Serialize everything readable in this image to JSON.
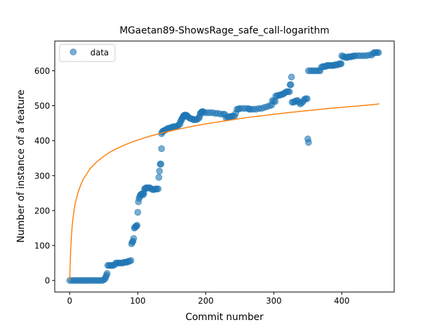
{
  "chart_data": {
    "type": "scatter",
    "title": "MGaetan89-ShowsRage_safe_call-logarithm",
    "xlabel": "Commit number",
    "ylabel": "Number of instance of a feature",
    "xlim": [
      -22,
      477
    ],
    "ylim": [
      -33,
      685
    ],
    "xticks": [
      0,
      100,
      200,
      300,
      400
    ],
    "yticks": [
      0,
      100,
      200,
      300,
      400,
      500,
      600
    ],
    "xtick_labels": [
      "0",
      "100",
      "200",
      "300",
      "400"
    ],
    "ytick_labels": [
      "0",
      "100",
      "200",
      "300",
      "400",
      "500",
      "600"
    ],
    "grid": false,
    "legend": {
      "position": "top-left",
      "entries": [
        "data"
      ]
    },
    "series": [
      {
        "name": "data",
        "kind": "scatter",
        "color": "#1f77b4",
        "points": [
          [
            0,
            0
          ],
          [
            3,
            0
          ],
          [
            6,
            0
          ],
          [
            9,
            0
          ],
          [
            12,
            0
          ],
          [
            15,
            0
          ],
          [
            18,
            0
          ],
          [
            21,
            0
          ],
          [
            24,
            0
          ],
          [
            27,
            0
          ],
          [
            30,
            0
          ],
          [
            33,
            0
          ],
          [
            36,
            0
          ],
          [
            39,
            0
          ],
          [
            42,
            0
          ],
          [
            45,
            0
          ],
          [
            48,
            0
          ],
          [
            50,
            2
          ],
          [
            52,
            5
          ],
          [
            53,
            10
          ],
          [
            54,
            15
          ],
          [
            55,
            20
          ],
          [
            56,
            43
          ],
          [
            58,
            43
          ],
          [
            60,
            43
          ],
          [
            62,
            43
          ],
          [
            64,
            43
          ],
          [
            66,
            45
          ],
          [
            68,
            50
          ],
          [
            70,
            50
          ],
          [
            72,
            50
          ],
          [
            74,
            50
          ],
          [
            76,
            50
          ],
          [
            78,
            50
          ],
          [
            80,
            52
          ],
          [
            82,
            52
          ],
          [
            84,
            52
          ],
          [
            86,
            55
          ],
          [
            88,
            55
          ],
          [
            90,
            57
          ],
          [
            91,
            105
          ],
          [
            92,
            110
          ],
          [
            93,
            112
          ],
          [
            94,
            120
          ],
          [
            95,
            150
          ],
          [
            96,
            152
          ],
          [
            97,
            155
          ],
          [
            98,
            155
          ],
          [
            99,
            158
          ],
          [
            100,
            195
          ],
          [
            101,
            225
          ],
          [
            102,
            235
          ],
          [
            103,
            240
          ],
          [
            104,
            245
          ],
          [
            105,
            245
          ],
          [
            106,
            248
          ],
          [
            107,
            248
          ],
          [
            108,
            245
          ],
          [
            109,
            250
          ],
          [
            110,
            262
          ],
          [
            111,
            262
          ],
          [
            112,
            265
          ],
          [
            114,
            265
          ],
          [
            116,
            265
          ],
          [
            118,
            265
          ],
          [
            120,
            262
          ],
          [
            122,
            260
          ],
          [
            124,
            260
          ],
          [
            126,
            262
          ],
          [
            128,
            262
          ],
          [
            130,
            262
          ],
          [
            131,
            295
          ],
          [
            132,
            313
          ],
          [
            133,
            333
          ],
          [
            134,
            333
          ],
          [
            135,
            377
          ],
          [
            135,
            420
          ],
          [
            136,
            425
          ],
          [
            137,
            427
          ],
          [
            138,
            428
          ],
          [
            140,
            430
          ],
          [
            142,
            432
          ],
          [
            144,
            435
          ],
          [
            146,
            435
          ],
          [
            148,
            437
          ],
          [
            150,
            438
          ],
          [
            152,
            440
          ],
          [
            154,
            440
          ],
          [
            156,
            440
          ],
          [
            158,
            442
          ],
          [
            160,
            445
          ],
          [
            162,
            447
          ],
          [
            163,
            455
          ],
          [
            164,
            458
          ],
          [
            165,
            463
          ],
          [
            166,
            465
          ],
          [
            167,
            470
          ],
          [
            168,
            472
          ],
          [
            169,
            473
          ],
          [
            170,
            473
          ],
          [
            171,
            473
          ],
          [
            172,
            472
          ],
          [
            173,
            470
          ],
          [
            174,
            468
          ],
          [
            176,
            465
          ],
          [
            178,
            463
          ],
          [
            180,
            462
          ],
          [
            182,
            460
          ],
          [
            184,
            460
          ],
          [
            186,
            460
          ],
          [
            188,
            462
          ],
          [
            190,
            465
          ],
          [
            191,
            470
          ],
          [
            192,
            478
          ],
          [
            193,
            480
          ],
          [
            194,
            482
          ],
          [
            195,
            483
          ],
          [
            196,
            483
          ],
          [
            198,
            480
          ],
          [
            202,
            480
          ],
          [
            206,
            480
          ],
          [
            210,
            480
          ],
          [
            214,
            478
          ],
          [
            218,
            478
          ],
          [
            222,
            476
          ],
          [
            226,
            476
          ],
          [
            228,
            475
          ],
          [
            230,
            465
          ],
          [
            232,
            468
          ],
          [
            234,
            468
          ],
          [
            236,
            468
          ],
          [
            238,
            470
          ],
          [
            240,
            470
          ],
          [
            242,
            470
          ],
          [
            244,
            478
          ],
          [
            246,
            490
          ],
          [
            248,
            490
          ],
          [
            250,
            492
          ],
          [
            254,
            492
          ],
          [
            258,
            492
          ],
          [
            262,
            492
          ],
          [
            264,
            490
          ],
          [
            266,
            490
          ],
          [
            270,
            490
          ],
          [
            274,
            490
          ],
          [
            278,
            492
          ],
          [
            282,
            492
          ],
          [
            286,
            495
          ],
          [
            290,
            497
          ],
          [
            294,
            500
          ],
          [
            297,
            502
          ],
          [
            298,
            515
          ],
          [
            300,
            513
          ],
          [
            302,
            512
          ],
          [
            303,
            528
          ],
          [
            305,
            528
          ],
          [
            307,
            530
          ],
          [
            309,
            530
          ],
          [
            311,
            532
          ],
          [
            313,
            533
          ],
          [
            315,
            535
          ],
          [
            317,
            538
          ],
          [
            319,
            540
          ],
          [
            321,
            540
          ],
          [
            323,
            540
          ],
          [
            324,
            560
          ],
          [
            325,
            560
          ],
          [
            326,
            582
          ],
          [
            327,
            510
          ],
          [
            329,
            510
          ],
          [
            331,
            512
          ],
          [
            333,
            514
          ],
          [
            335,
            515
          ],
          [
            337,
            510
          ],
          [
            339,
            505
          ],
          [
            341,
            508
          ],
          [
            343,
            512
          ],
          [
            345,
            518
          ],
          [
            347,
            520
          ],
          [
            349,
            520
          ],
          [
            350,
            405
          ],
          [
            351,
            395
          ],
          [
            351,
            600
          ],
          [
            354,
            600
          ],
          [
            357,
            600
          ],
          [
            360,
            600
          ],
          [
            363,
            600
          ],
          [
            366,
            600
          ],
          [
            368,
            600
          ],
          [
            370,
            610
          ],
          [
            372,
            612
          ],
          [
            374,
            612
          ],
          [
            376,
            612
          ],
          [
            378,
            615
          ],
          [
            380,
            615
          ],
          [
            382,
            615
          ],
          [
            384,
            615
          ],
          [
            386,
            615
          ],
          [
            388,
            615
          ],
          [
            390,
            617
          ],
          [
            392,
            617
          ],
          [
            394,
            617
          ],
          [
            396,
            620
          ],
          [
            398,
            620
          ],
          [
            399,
            620
          ],
          [
            400,
            643
          ],
          [
            402,
            640
          ],
          [
            404,
            640
          ],
          [
            406,
            638
          ],
          [
            408,
            638
          ],
          [
            410,
            640
          ],
          [
            412,
            640
          ],
          [
            414,
            640
          ],
          [
            416,
            642
          ],
          [
            418,
            642
          ],
          [
            420,
            643
          ],
          [
            424,
            643
          ],
          [
            428,
            643
          ],
          [
            432,
            643
          ],
          [
            436,
            643
          ],
          [
            440,
            645
          ],
          [
            444,
            645
          ],
          [
            446,
            650
          ],
          [
            448,
            652
          ],
          [
            450,
            652
          ],
          [
            452,
            652
          ],
          [
            454,
            652
          ]
        ]
      },
      {
        "name": "",
        "kind": "line",
        "color": "#ff7f0e",
        "curve": "logarithmic",
        "x": [
          0,
          1,
          2,
          3,
          4,
          5,
          6,
          7,
          8,
          10,
          12,
          14,
          17,
          20,
          25,
          30,
          35,
          40,
          50,
          60,
          70,
          80,
          90,
          100,
          120,
          140,
          160,
          180,
          200,
          230,
          260,
          290,
          320,
          350,
          380,
          410,
          440,
          455
        ],
        "y": [
          0,
          70,
          110,
          140,
          165,
          180,
          195,
          208,
          220,
          235,
          250,
          262,
          277,
          290,
          305,
          320,
          330,
          340,
          355,
          368,
          378,
          387,
          395,
          402,
          414,
          424,
          433,
          441,
          448,
          457,
          466,
          473,
          480,
          486,
          492,
          497,
          502,
          505
        ]
      }
    ]
  }
}
